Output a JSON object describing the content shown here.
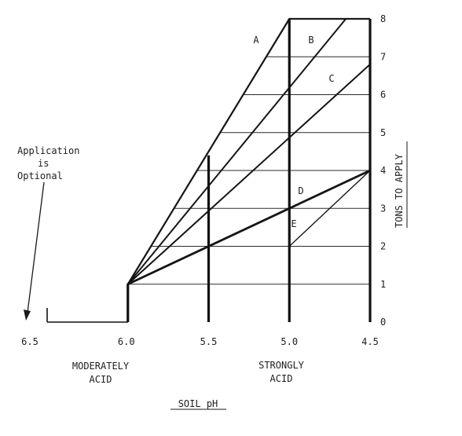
{
  "chart_data": {
    "type": "line",
    "title": "",
    "xlabel": "SOIL pH",
    "ylabel": "TONS TO APPLY",
    "x_ticks": [
      "6.5",
      "6.0",
      "5.5",
      "5.0",
      "4.5"
    ],
    "y_ticks": [
      "0",
      "1",
      "2",
      "3",
      "4",
      "5",
      "6",
      "7",
      "8"
    ],
    "xlim": [
      6.5,
      4.5
    ],
    "ylim": [
      0,
      8
    ],
    "series": [
      {
        "name": "A",
        "points": [
          [
            6.0,
            1
          ],
          [
            5.0,
            8
          ]
        ]
      },
      {
        "name": "B",
        "points": [
          [
            6.0,
            1
          ],
          [
            4.65,
            8
          ]
        ]
      },
      {
        "name": "C",
        "points": [
          [
            6.0,
            1
          ],
          [
            4.5,
            6.8
          ]
        ]
      },
      {
        "name": "D",
        "points": [
          [
            6.0,
            1
          ],
          [
            4.5,
            4
          ]
        ]
      },
      {
        "name": "E",
        "points": [
          [
            5.0,
            2
          ],
          [
            4.5,
            4
          ]
        ]
      }
    ],
    "annotations": {
      "optional": [
        "Application",
        "is",
        "Optional"
      ],
      "moderately": [
        "MODERATELY",
        "ACID"
      ],
      "strongly": [
        "STRONGLY",
        "ACID"
      ]
    }
  }
}
